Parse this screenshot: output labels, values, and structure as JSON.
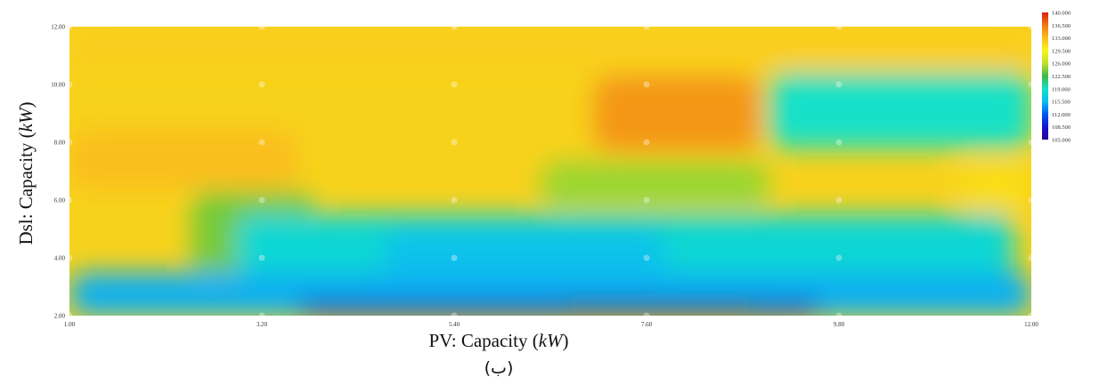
{
  "chart_data": {
    "type": "heatmap",
    "title": "",
    "xlabel": "PV: Capacity (kW)",
    "xlabel_prefix": "PV: Capacity (",
    "xlabel_unit": "kW",
    "xlabel_suffix": ")",
    "ylabel": "Dsl: Capacity (kW)",
    "ylabel_prefix": "Dsl: Capacity (",
    "ylabel_unit": "kW",
    "ylabel_suffix": ")",
    "caption": "(ب)",
    "xlim": [
      1.0,
      12.0
    ],
    "ylim": [
      2.0,
      12.0
    ],
    "x_ticks": [
      "1.00",
      "3.20",
      "5.40",
      "7.60",
      "9.80",
      "12.00"
    ],
    "y_ticks": [
      "2.00",
      "4.00",
      "6.00",
      "8.00",
      "10.00",
      "12.00"
    ],
    "x_tick_values": [
      1.0,
      3.2,
      5.4,
      7.6,
      9.8,
      12.0
    ],
    "y_tick_values": [
      2.0,
      4.0,
      6.0,
      8.0,
      10.0,
      12.0
    ],
    "legend": {
      "labels": [
        "140.000",
        "136.500",
        "133.000",
        "129.500",
        "126.000",
        "122.500",
        "119.000",
        "115.500",
        "112.000",
        "108.500",
        "105.000"
      ],
      "values": [
        140,
        136.5,
        133,
        129.5,
        126,
        122.5,
        119,
        115.5,
        112,
        108.5,
        105
      ],
      "placement": "right"
    },
    "regions": [
      {
        "x": [
          1.0,
          12.0
        ],
        "y": [
          10.6,
          12.0
        ],
        "value": 132
      },
      {
        "x": [
          1.0,
          3.6
        ],
        "y": [
          6.4,
          8.4
        ],
        "value": 133
      },
      {
        "x": [
          7.0,
          8.9
        ],
        "y": [
          7.7,
          10.3
        ],
        "value": 135
      },
      {
        "x": [
          9.0,
          12.0
        ],
        "y": [
          7.8,
          10.4
        ],
        "value": 119
      },
      {
        "x": [
          6.4,
          9.0
        ],
        "y": [
          5.8,
          7.3
        ],
        "value": 125
      },
      {
        "x": [
          11.2,
          12.0
        ],
        "y": [
          5.7,
          7.3
        ],
        "value": 131
      },
      {
        "x": [
          2.4,
          3.8
        ],
        "y": [
          2.9,
          6.3
        ],
        "value": 124
      },
      {
        "x": [
          2.9,
          11.8
        ],
        "y": [
          3.4,
          5.5
        ],
        "value": 118
      },
      {
        "x": [
          4.6,
          7.8
        ],
        "y": [
          3.0,
          5.0
        ],
        "value": 116
      },
      {
        "x": [
          1.0,
          12.0
        ],
        "y": [
          2.0,
          3.5
        ],
        "value": 115
      },
      {
        "x": [
          3.6,
          9.6
        ],
        "y": [
          2.0,
          2.5
        ],
        "value": 109
      },
      {
        "x": [
          6.6,
          8.9
        ],
        "y": [
          2.0,
          2.4
        ],
        "value": 106
      }
    ]
  }
}
